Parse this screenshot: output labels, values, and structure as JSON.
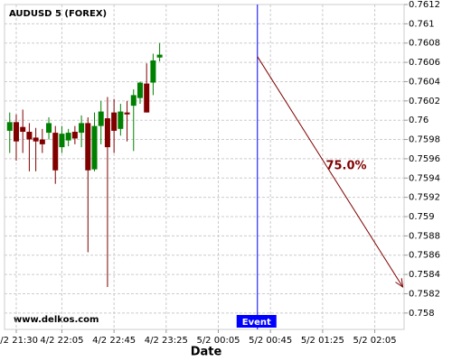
{
  "chart_data": {
    "type": "candlestick",
    "title": "AUDUSD 5 (FOREX)",
    "x_label": "Date",
    "x": [
      0,
      1,
      2,
      3,
      4,
      5,
      6,
      7,
      8,
      9,
      10,
      11,
      12,
      13,
      14,
      15,
      16,
      17,
      18,
      19,
      20,
      21,
      22,
      23
    ],
    "open": [
      0.75989,
      0.75998,
      0.75993,
      0.75988,
      0.75982,
      0.7598,
      0.75987,
      0.75987,
      0.75972,
      0.75979,
      0.75988,
      0.75987,
      0.75997,
      0.75949,
      0.75994,
      0.76002,
      0.76008,
      0.75991,
      0.76008,
      0.76015,
      0.76023,
      0.76038,
      0.76039,
      0.76065
    ],
    "high": [
      0.76008,
      0.76006,
      0.76011,
      0.75997,
      0.75992,
      0.75991,
      0.76003,
      0.75994,
      0.75994,
      0.75991,
      0.75994,
      0.76005,
      0.76003,
      0.76008,
      0.7602,
      0.76024,
      0.76022,
      0.76017,
      0.7602,
      0.76032,
      0.7604,
      0.76059,
      0.76069,
      0.7608
    ],
    "low": [
      0.75966,
      0.75958,
      0.75966,
      0.75947,
      0.75947,
      0.75966,
      0.7598,
      0.75934,
      0.75966,
      0.75973,
      0.75975,
      0.75972,
      0.75863,
      0.75947,
      0.75975,
      0.75827,
      0.75966,
      0.75984,
      0.75978,
      0.75968,
      0.76017,
      0.76008,
      0.76026,
      0.76061
    ],
    "close": [
      0.75998,
      0.75978,
      0.75988,
      0.7598,
      0.75978,
      0.75975,
      0.75997,
      0.75948,
      0.75986,
      0.75987,
      0.75981,
      0.75997,
      0.75948,
      0.75994,
      0.76009,
      0.75972,
      0.75989,
      0.76009,
      0.76006,
      0.76026,
      0.76039,
      0.76008,
      0.76062,
      0.76068
    ],
    "up_color": "#008000",
    "down_color": "#800000",
    "xlim": [
      -0.8,
      60.5
    ],
    "ylim": [
      0.75783,
      0.7612
    ],
    "xticks": [
      {
        "value": 1,
        "label": "4/2 21:30"
      },
      {
        "value": 8,
        "label": "4/2 22:05"
      },
      {
        "value": 16,
        "label": "4/2 22:45"
      },
      {
        "value": 24,
        "label": "4/2 23:25"
      },
      {
        "value": 32,
        "label": "5/2 00:05"
      },
      {
        "value": 40,
        "label": "5/2 00:45"
      },
      {
        "value": 48,
        "label": "5/2 01:25"
      },
      {
        "value": 56,
        "label": "5/2 02:05"
      }
    ],
    "yticks": [
      0.758,
      0.7582,
      0.7584,
      0.7586,
      0.7588,
      0.759,
      0.7592,
      0.7594,
      0.7596,
      0.7598,
      0.76,
      0.7602,
      0.7604,
      0.7606,
      0.7608,
      0.761,
      0.7612
    ],
    "grid": true,
    "event": {
      "x": 38,
      "label": "Event",
      "color": "#0000ff"
    },
    "forecast": {
      "x": [
        38,
        60.3
      ],
      "y": [
        0.76066,
        0.75827
      ],
      "label": "75.0%",
      "color": "#800000"
    },
    "watermark": "www.delkos.com"
  }
}
